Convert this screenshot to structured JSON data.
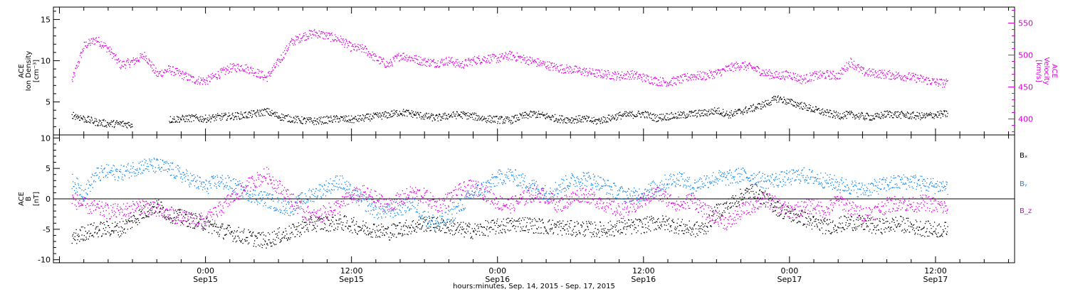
{
  "chart_data": [
    {
      "panel": "ion-density-velocity",
      "type": "scatter",
      "ylabel_left": [
        "ACE",
        "Ion Density",
        "[cm⁻³]"
      ],
      "ylabel_right": [
        "ACE",
        "Velocity",
        "[km/s]"
      ],
      "ylim_left": [
        1,
        16.5
      ],
      "ylim_right": [
        375,
        575
      ],
      "yticks_left": [
        5,
        10,
        15
      ],
      "yticks_right": [
        400,
        450,
        500,
        550
      ],
      "colors": {
        "density": "#000000",
        "velocity": "#dd00dd"
      },
      "series": [
        {
          "key": "density",
          "axis": "left",
          "x": [
            -11,
            -10,
            -9,
            -8,
            -7,
            -6,
            -3,
            -2,
            -1,
            0,
            1,
            2,
            3,
            4,
            5,
            6,
            7,
            8,
            9,
            10,
            11,
            12,
            13,
            14,
            15,
            16,
            17,
            18,
            19,
            20,
            21,
            22,
            23,
            24,
            25,
            26,
            27,
            28,
            29,
            30,
            31,
            32,
            33,
            34,
            35,
            36,
            37,
            38,
            39,
            40,
            41,
            42,
            43,
            44,
            45,
            46,
            47,
            48,
            49,
            50,
            51,
            52,
            53,
            54,
            55,
            56,
            57,
            58,
            59,
            60,
            61
          ],
          "values": [
            3.5,
            3.0,
            2.6,
            2.4,
            2.4,
            2.3,
            2.9,
            3.0,
            3.1,
            3.0,
            3.2,
            3.3,
            3.4,
            3.6,
            3.9,
            3.3,
            3.0,
            2.8,
            2.7,
            2.9,
            3.0,
            2.9,
            3.1,
            3.3,
            3.5,
            3.8,
            3.6,
            3.3,
            3.1,
            3.4,
            3.5,
            3.3,
            3.0,
            2.9,
            2.8,
            3.3,
            3.6,
            3.3,
            3.0,
            2.9,
            3.0,
            2.7,
            3.0,
            3.4,
            3.5,
            3.6,
            3.1,
            3.3,
            3.4,
            3.6,
            3.7,
            4.0,
            3.5,
            3.9,
            4.3,
            4.8,
            5.5,
            5.0,
            4.6,
            4.1,
            3.7,
            3.4,
            3.5,
            3.3,
            3.2,
            3.6,
            3.5,
            3.4,
            3.3,
            3.5,
            3.6
          ]
        },
        {
          "key": "velocity",
          "axis": "right",
          "x": [
            -11,
            -10,
            -9,
            -8,
            -7,
            -6,
            -5,
            -4,
            -3,
            -2,
            -1,
            0,
            1,
            2,
            3,
            4,
            5,
            6,
            7,
            8,
            9,
            10,
            11,
            12,
            13,
            14,
            15,
            16,
            17,
            18,
            19,
            20,
            21,
            22,
            23,
            24,
            25,
            26,
            27,
            28,
            29,
            30,
            31,
            32,
            33,
            34,
            35,
            36,
            37,
            38,
            39,
            40,
            41,
            42,
            43,
            44,
            45,
            46,
            47,
            48,
            49,
            50,
            51,
            52,
            53,
            54,
            55,
            56,
            57,
            58,
            59,
            60,
            61
          ],
          "values": [
            460,
            515,
            525,
            510,
            485,
            490,
            500,
            470,
            478,
            470,
            462,
            460,
            470,
            480,
            482,
            475,
            465,
            490,
            520,
            530,
            535,
            530,
            525,
            512,
            510,
            495,
            485,
            500,
            495,
            490,
            488,
            492,
            485,
            492,
            495,
            495,
            500,
            495,
            490,
            485,
            480,
            478,
            475,
            472,
            470,
            468,
            470,
            465,
            460,
            458,
            462,
            468,
            468,
            472,
            480,
            485,
            480,
            472,
            468,
            470,
            462,
            468,
            470,
            468,
            490,
            474,
            472,
            470,
            468,
            466,
            462,
            458,
            456
          ]
        }
      ]
    },
    {
      "panel": "magnetic-field",
      "type": "scatter",
      "ylabel_left": [
        "ACE",
        "B",
        "[nT]"
      ],
      "ylim": [
        -10.5,
        10.5
      ],
      "yticks": [
        -10,
        -5,
        0,
        5,
        10
      ],
      "zero_line": true,
      "legend": [
        "Bₓ",
        "Bᵧ",
        "B_z"
      ],
      "legend_position": "right",
      "series": [
        {
          "name": "Bₓ",
          "color": "#000000",
          "x": [
            -11,
            -10,
            -9,
            -8,
            -7,
            -6,
            -5,
            -4,
            -3,
            -2,
            -1,
            0,
            1,
            2,
            3,
            4,
            5,
            6,
            7,
            8,
            9,
            10,
            11,
            12,
            13,
            14,
            15,
            16,
            17,
            18,
            19,
            20,
            21,
            22,
            23,
            24,
            25,
            26,
            27,
            28,
            29,
            30,
            31,
            32,
            33,
            34,
            35,
            36,
            37,
            38,
            39,
            40,
            41,
            42,
            43,
            44,
            45,
            46,
            47,
            48,
            49,
            50,
            51,
            52,
            53,
            54,
            55,
            56,
            57,
            58,
            59,
            60,
            61
          ],
          "values": [
            -6.5,
            -5.5,
            -5.0,
            -4.8,
            -4.9,
            -3.5,
            -2.0,
            -1.0,
            -2.5,
            -3.0,
            -3.5,
            -4.0,
            -5.0,
            -5.5,
            -6.0,
            -6.5,
            -6.8,
            -6.0,
            -5.5,
            -4.5,
            -4.0,
            -4.0,
            -3.8,
            -4.2,
            -4.8,
            -5.0,
            -5.5,
            -4.8,
            -4.5,
            -4.0,
            -4.2,
            -4.5,
            -5.0,
            -5.2,
            -4.8,
            -4.5,
            -4.2,
            -4.0,
            -4.3,
            -4.5,
            -4.6,
            -4.8,
            -4.8,
            -5.0,
            -4.9,
            -4.7,
            -4.5,
            -4.3,
            -3.8,
            -4.0,
            -4.5,
            -5.0,
            -4.8,
            -2.0,
            -1.0,
            0.5,
            1.5,
            0.0,
            -1.5,
            -2.5,
            -3.0,
            -4.0,
            -4.5,
            -4.2,
            -3.8,
            -4.0,
            -4.5,
            -4.3,
            -4.0,
            -4.5,
            -4.8,
            -5.0,
            -5.0
          ]
        },
        {
          "name": "Bᵧ",
          "color": "#1188ee",
          "x": [
            -11,
            -10,
            -9,
            -8,
            -7,
            -6,
            -5,
            -4,
            -3,
            -2,
            -1,
            0,
            1,
            2,
            3,
            4,
            5,
            6,
            7,
            8,
            9,
            10,
            11,
            12,
            13,
            14,
            15,
            16,
            17,
            18,
            19,
            20,
            21,
            22,
            23,
            24,
            25,
            26,
            27,
            28,
            29,
            30,
            31,
            32,
            33,
            34,
            35,
            36,
            37,
            38,
            39,
            40,
            41,
            42,
            43,
            44,
            45,
            46,
            47,
            48,
            49,
            50,
            51,
            52,
            53,
            54,
            55,
            56,
            57,
            58,
            59,
            60,
            61
          ],
          "values": [
            3.0,
            1.0,
            4.0,
            4.5,
            4.3,
            5.0,
            5.5,
            5.5,
            5.0,
            4.0,
            3.0,
            2.0,
            3.0,
            2.5,
            1.5,
            0.5,
            0.0,
            -1.0,
            -1.5,
            0.0,
            1.0,
            2.0,
            3.0,
            1.0,
            -0.5,
            -2.0,
            -2.0,
            -1.5,
            -0.5,
            -3.0,
            -4.0,
            -3.0,
            -1.0,
            1.0,
            2.0,
            3.5,
            4.0,
            3.0,
            2.0,
            1.0,
            2.0,
            3.0,
            3.5,
            3.0,
            2.0,
            1.0,
            0.5,
            1.0,
            2.0,
            3.0,
            3.5,
            2.0,
            3.0,
            3.5,
            3.5,
            4.0,
            3.5,
            3.0,
            3.2,
            3.5,
            4.0,
            3.5,
            3.0,
            2.5,
            2.0,
            1.5,
            2.0,
            2.5,
            2.8,
            3.0,
            2.5,
            2.2,
            2.0
          ]
        },
        {
          "name": "B_z",
          "color": "#dd00dd",
          "x": [
            -11,
            -10,
            -9,
            -8,
            -7,
            -6,
            -5,
            -4,
            -3,
            -2,
            -1,
            0,
            1,
            2,
            3,
            4,
            5,
            6,
            7,
            8,
            9,
            10,
            11,
            12,
            13,
            14,
            15,
            16,
            17,
            18,
            19,
            20,
            21,
            22,
            23,
            24,
            25,
            26,
            27,
            28,
            29,
            30,
            31,
            32,
            33,
            34,
            35,
            36,
            37,
            38,
            39,
            40,
            41,
            42,
            43,
            44,
            45,
            46,
            47,
            48,
            49,
            50,
            51,
            52,
            53,
            54,
            55,
            56,
            57,
            58,
            59,
            60,
            61
          ],
          "values": [
            0.0,
            -1.0,
            -1.5,
            -2.0,
            -2.0,
            -1.5,
            -1.0,
            -2.0,
            -2.5,
            -3.0,
            -3.5,
            -3.5,
            -2.0,
            0.0,
            1.5,
            3.0,
            4.0,
            2.0,
            0.0,
            -2.0,
            -3.0,
            -2.0,
            -1.0,
            0.5,
            1.0,
            0.0,
            -1.0,
            0.0,
            1.0,
            0.5,
            -1.0,
            0.0,
            1.5,
            2.0,
            1.0,
            -0.5,
            -1.0,
            0.0,
            1.0,
            0.5,
            -1.0,
            0.0,
            1.0,
            0.0,
            -1.0,
            -2.0,
            -1.5,
            0.0,
            1.0,
            0.0,
            -1.0,
            0.0,
            -2.0,
            -3.0,
            -4.0,
            -2.0,
            -1.0,
            0.0,
            -1.0,
            -2.0,
            -1.5,
            -1.0,
            -2.0,
            0.0,
            -1.5,
            -2.5,
            -2.0,
            -1.0,
            -0.5,
            -1.0,
            -0.5,
            -1.0,
            -1.5
          ]
        }
      ]
    }
  ],
  "x_axis": {
    "xlabel": "hours:minutes, Sep. 14, 2015 - Sep. 17, 2015",
    "xlim_hours": [
      -12.5,
      66.5
    ],
    "ticks": [
      {
        "x": 0,
        "time": "0:00",
        "day": "Sep15"
      },
      {
        "x": 12,
        "time": "12:00",
        "day": "Sep15"
      },
      {
        "x": 24,
        "time": "0:00",
        "day": "Sep16"
      },
      {
        "x": 36,
        "time": "12:00",
        "day": "Sep16"
      },
      {
        "x": 48,
        "time": "0:00",
        "day": "Sep17"
      },
      {
        "x": 60,
        "time": "12:00",
        "day": "Sep17"
      }
    ]
  }
}
